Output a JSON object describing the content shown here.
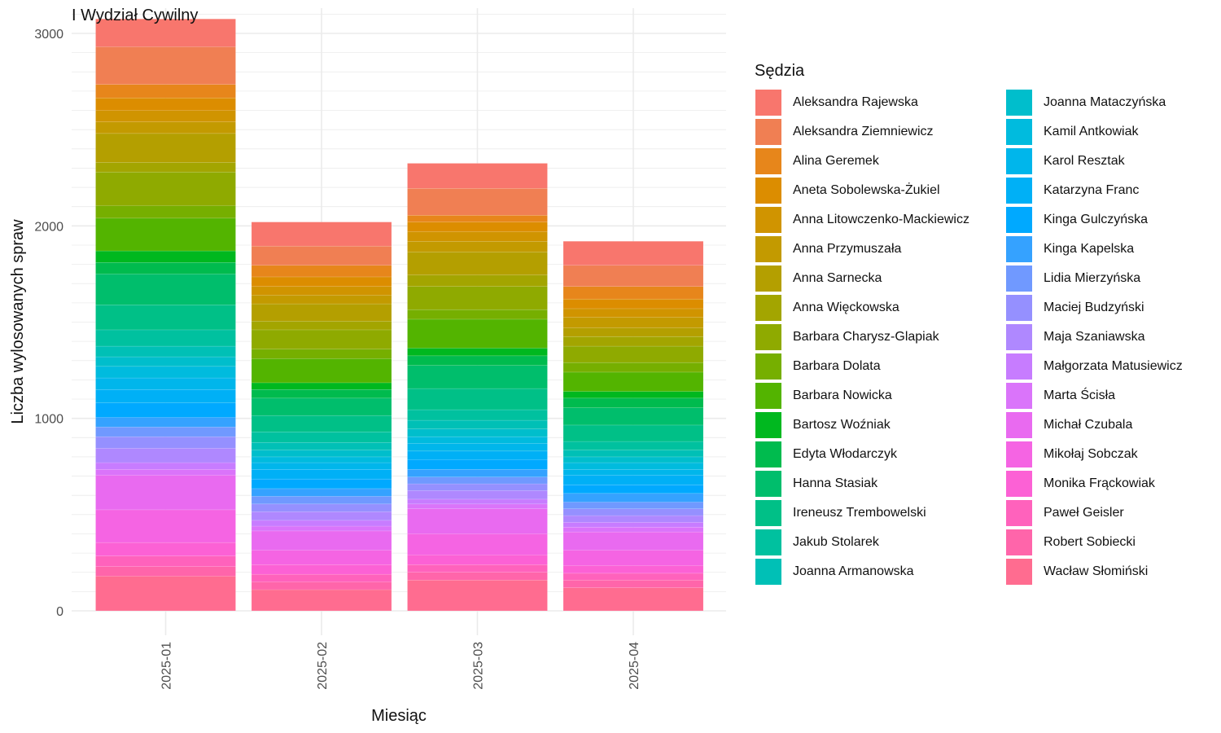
{
  "chart_data": {
    "type": "bar",
    "stacked": true,
    "title": "I Wydział Cywilny",
    "xlabel": "Miesiąc",
    "ylabel": "Liczba wylosowanych spraw",
    "legend_title": "Sędzia",
    "legend_position": "right",
    "grid": true,
    "ylim": [
      0,
      3000
    ],
    "yticks": [
      0,
      1000,
      2000,
      3000
    ],
    "categories": [
      "2025-01",
      "2025-02",
      "2025-03",
      "2025-04"
    ],
    "series": [
      {
        "name": "Aleksandra Rajewska",
        "color": "#F8766D",
        "values": [
          145,
          125,
          130,
          125
        ]
      },
      {
        "name": "Aleksandra Ziemniewicz",
        "color": "#F07F53",
        "values": [
          195,
          100,
          140,
          110
        ]
      },
      {
        "name": "Alina Geremek",
        "color": "#E7861B",
        "values": [
          70,
          60,
          35,
          65
        ]
      },
      {
        "name": "Aneta Sobolewska-Żukiel",
        "color": "#DC8D00",
        "values": [
          65,
          50,
          50,
          50
        ]
      },
      {
        "name": "Anna Litowczenko-Mackiewicz",
        "color": "#D09400",
        "values": [
          60,
          45,
          50,
          45
        ]
      },
      {
        "name": "Anna Przymuszała",
        "color": "#C39A00",
        "values": [
          60,
          45,
          55,
          55
        ]
      },
      {
        "name": "Anna Sarnecka",
        "color": "#B49F00",
        "values": [
          150,
          90,
          120,
          45
        ]
      },
      {
        "name": "Anna Więckowska",
        "color": "#A3A500",
        "values": [
          50,
          45,
          60,
          50
        ]
      },
      {
        "name": "Barbara Charysz-Glapiak",
        "color": "#8FAA00",
        "values": [
          175,
          100,
          120,
          85
        ]
      },
      {
        "name": "Barbara Dolata",
        "color": "#76AF00",
        "values": [
          65,
          50,
          50,
          50
        ]
      },
      {
        "name": "Barbara Nowicka",
        "color": "#53B400",
        "values": [
          170,
          125,
          150,
          100
        ]
      },
      {
        "name": "Bartosz Woźniak",
        "color": "#00B81F",
        "values": [
          60,
          35,
          40,
          35
        ]
      },
      {
        "name": "Edyta Włodarczyk",
        "color": "#00BB4E",
        "values": [
          60,
          45,
          50,
          50
        ]
      },
      {
        "name": "Hanna Stasiak",
        "color": "#00BE6C",
        "values": [
          160,
          90,
          120,
          90
        ]
      },
      {
        "name": "Ireneusz Trembowelski",
        "color": "#00C087",
        "values": [
          130,
          85,
          110,
          85
        ]
      },
      {
        "name": "Jakub Stolarek",
        "color": "#00C19F",
        "values": [
          85,
          55,
          55,
          45
        ]
      },
      {
        "name": "Joanna Armanowska",
        "color": "#00C0B6",
        "values": [
          55,
          40,
          45,
          35
        ]
      },
      {
        "name": "Joanna Mataczyńska",
        "color": "#00BECC",
        "values": [
          50,
          35,
          40,
          30
        ]
      },
      {
        "name": "Kamil Antkowiak",
        "color": "#00BBDE",
        "values": [
          60,
          30,
          35,
          35
        ]
      },
      {
        "name": "Karol Resztak",
        "color": "#00B6EB",
        "values": [
          60,
          35,
          40,
          30
        ]
      },
      {
        "name": "Katarzyna Franc",
        "color": "#00B0F6",
        "values": [
          70,
          50,
          45,
          50
        ]
      },
      {
        "name": "Kinga Gulczyńska",
        "color": "#00A9FF",
        "values": [
          75,
          50,
          50,
          45
        ]
      },
      {
        "name": "Kinga Kapelska",
        "color": "#35A2FF",
        "values": [
          50,
          40,
          40,
          45
        ]
      },
      {
        "name": "Lidia Mierzyńska",
        "color": "#7099FF",
        "values": [
          50,
          40,
          35,
          35
        ]
      },
      {
        "name": "Maciej Budzyński",
        "color": "#9590FF",
        "values": [
          60,
          40,
          35,
          35
        ]
      },
      {
        "name": "Maja Szaniawska",
        "color": "#AF88FF",
        "values": [
          75,
          45,
          45,
          35
        ]
      },
      {
        "name": "Małgorzata Matusiewicz",
        "color": "#C77CFF",
        "values": [
          35,
          30,
          25,
          25
        ]
      },
      {
        "name": "Marta Ścisła",
        "color": "#DA74FA",
        "values": [
          30,
          25,
          25,
          25
        ]
      },
      {
        "name": "Michał Czubala",
        "color": "#E96AF0",
        "values": [
          180,
          100,
          130,
          95
        ]
      },
      {
        "name": "Mikołaj Sobczak",
        "color": "#F564E3",
        "values": [
          170,
          75,
          110,
          80
        ]
      },
      {
        "name": "Monika Frąckowiak",
        "color": "#FC61D5",
        "values": [
          70,
          50,
          50,
          40
        ]
      },
      {
        "name": "Paweł Geisler",
        "color": "#FF62BC",
        "values": [
          55,
          40,
          40,
          35
        ]
      },
      {
        "name": "Robert Sobiecki",
        "color": "#FF65AA",
        "values": [
          50,
          40,
          40,
          40
        ]
      },
      {
        "name": "Wacław Słomiński",
        "color": "#FF6C90",
        "values": [
          180,
          110,
          160,
          120
        ]
      }
    ]
  }
}
